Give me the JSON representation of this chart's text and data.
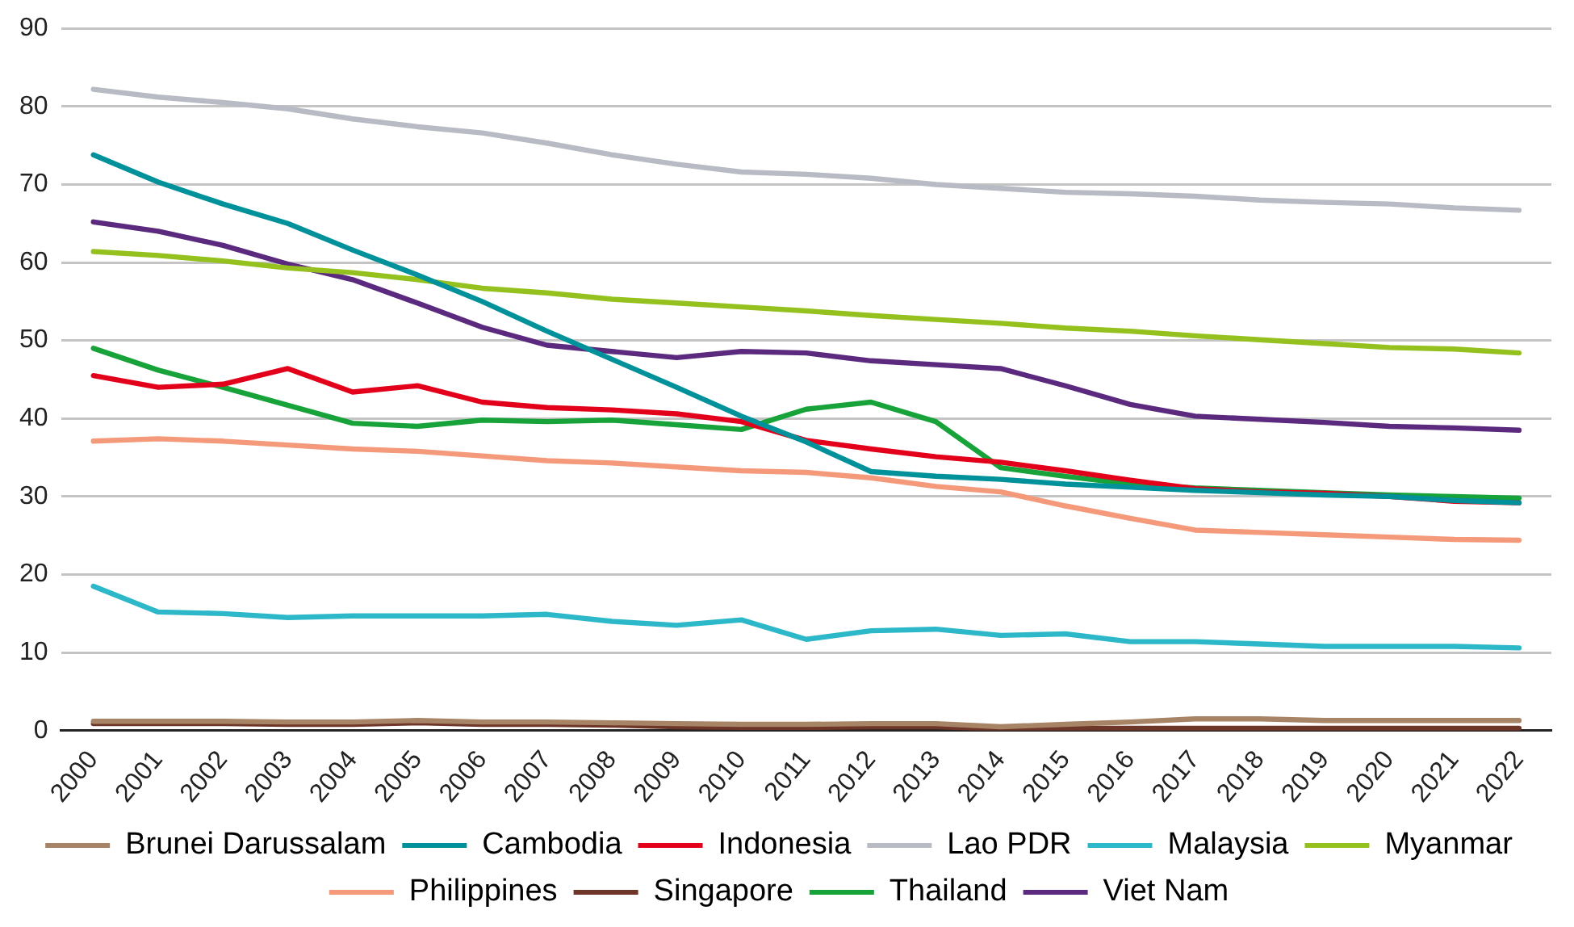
{
  "chart_data": {
    "type": "line",
    "categories": [
      "2000",
      "2001",
      "2002",
      "2003",
      "2004",
      "2005",
      "2006",
      "2007",
      "2008",
      "2009",
      "2010",
      "2011",
      "2012",
      "2013",
      "2014",
      "2015",
      "2016",
      "2017",
      "2018",
      "2019",
      "2020",
      "2021",
      "2022"
    ],
    "ylim": [
      0,
      90
    ],
    "yticks": [
      0,
      10,
      20,
      30,
      40,
      50,
      60,
      70,
      80,
      90
    ],
    "grid": "y",
    "legend": "bottom",
    "marker": "none",
    "line_style": "solid",
    "series": [
      {
        "name": "Brunei Darussalam",
        "color": "#a88466",
        "values": [
          1.2,
          1.2,
          1.2,
          1.1,
          1.1,
          1.3,
          1.1,
          1.1,
          1.0,
          0.9,
          0.8,
          0.8,
          0.9,
          0.9,
          0.5,
          0.8,
          1.1,
          1.5,
          1.5,
          1.3,
          1.3,
          1.3,
          1.3
        ]
      },
      {
        "name": "Cambodia",
        "color": "#00919a",
        "values": [
          73.8,
          70.3,
          67.5,
          65.0,
          61.6,
          58.4,
          55.0,
          51.2,
          47.6,
          44.0,
          40.3,
          37.0,
          33.2,
          32.6,
          32.2,
          31.6,
          31.2,
          30.8,
          30.5,
          30.2,
          30.0,
          29.5,
          29.2
        ]
      },
      {
        "name": "Indonesia",
        "color": "#e3001b",
        "values": [
          45.5,
          44.0,
          44.4,
          46.4,
          43.4,
          44.2,
          42.1,
          41.4,
          41.1,
          40.6,
          39.6,
          37.2,
          36.1,
          35.1,
          34.4,
          33.3,
          32.1,
          31.0,
          30.6,
          30.4,
          30.0,
          29.4,
          29.2
        ]
      },
      {
        "name": "Lao PDR",
        "color": "#b8bbc3",
        "values": [
          82.2,
          81.2,
          80.5,
          79.7,
          78.4,
          77.4,
          76.6,
          75.3,
          73.8,
          72.6,
          71.6,
          71.3,
          70.8,
          70.0,
          69.5,
          69.0,
          68.8,
          68.5,
          68.0,
          67.7,
          67.5,
          67.0,
          66.7
        ]
      },
      {
        "name": "Malaysia",
        "color": "#2db8c9",
        "values": [
          18.5,
          15.2,
          15.0,
          14.5,
          14.7,
          14.7,
          14.7,
          14.9,
          14.0,
          13.5,
          14.2,
          11.7,
          12.8,
          13.0,
          12.2,
          12.4,
          11.4,
          11.4,
          11.1,
          10.8,
          10.8,
          10.8,
          10.6
        ]
      },
      {
        "name": "Myanmar",
        "color": "#95c11f",
        "values": [
          61.4,
          60.9,
          60.2,
          59.3,
          58.7,
          57.8,
          56.7,
          56.1,
          55.3,
          54.8,
          54.3,
          53.8,
          53.2,
          52.7,
          52.2,
          51.6,
          51.2,
          50.6,
          50.1,
          49.6,
          49.1,
          48.9,
          48.4
        ]
      },
      {
        "name": "Philippines",
        "color": "#f4997a",
        "values": [
          37.1,
          37.4,
          37.1,
          36.6,
          36.1,
          35.8,
          35.2,
          34.6,
          34.3,
          33.8,
          33.3,
          33.1,
          32.4,
          31.3,
          30.6,
          28.8,
          27.2,
          25.7,
          25.4,
          25.1,
          24.8,
          24.5,
          24.4
        ]
      },
      {
        "name": "Singapore",
        "color": "#6e3628",
        "values": [
          0.9,
          0.9,
          0.9,
          0.8,
          0.8,
          1.0,
          0.8,
          0.8,
          0.7,
          0.5,
          0.4,
          0.4,
          0.5,
          0.5,
          0.2,
          0.3,
          0.3,
          0.3,
          0.3,
          0.3,
          0.3,
          0.3,
          0.3
        ]
      },
      {
        "name": "Thailand",
        "color": "#17a33a",
        "values": [
          49.0,
          46.2,
          44.0,
          41.7,
          39.4,
          39.0,
          39.8,
          39.6,
          39.8,
          39.2,
          38.6,
          41.2,
          42.1,
          39.6,
          33.7,
          32.6,
          31.6,
          31.1,
          30.8,
          30.5,
          30.2,
          30.0,
          29.8
        ]
      },
      {
        "name": "Viet Nam",
        "color": "#5b2a7f",
        "values": [
          65.2,
          64.0,
          62.2,
          59.8,
          57.8,
          54.8,
          51.7,
          49.4,
          48.6,
          47.8,
          48.6,
          48.4,
          47.4,
          46.9,
          46.4,
          44.2,
          41.8,
          40.3,
          39.9,
          39.5,
          39.0,
          38.8,
          38.5
        ]
      }
    ]
  }
}
